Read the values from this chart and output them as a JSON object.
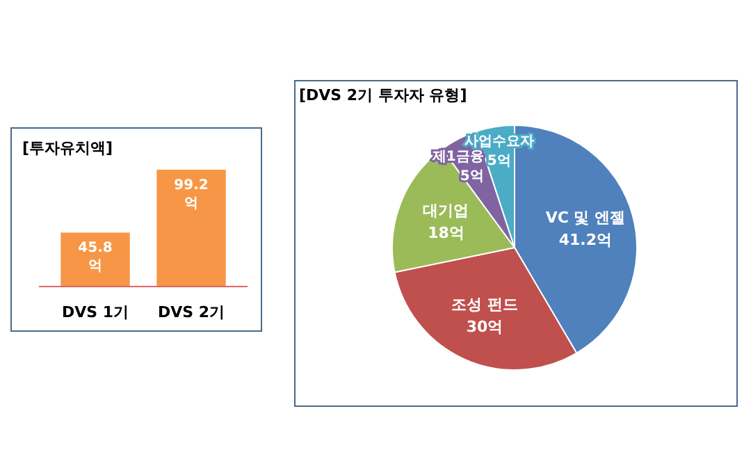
{
  "chart_data": [
    {
      "type": "bar",
      "title": "[투자유치액]",
      "categories": [
        "DVS 1기",
        "DVS 2기"
      ],
      "values": [
        45.8,
        99.2
      ],
      "color": "#f79646",
      "value_labels": [
        "45.8\n억",
        "99.2\n억"
      ]
    },
    {
      "type": "pie",
      "title": "[DVS 2기 투자자 유형]",
      "categories": [
        "VC 및 엔젤",
        "조성 펀드",
        "대기업",
        "제1금융",
        "사업수요자"
      ],
      "values": [
        41.2,
        30,
        18,
        5,
        5
      ],
      "value_labels": [
        "41.2억",
        "30억",
        "18억",
        "5억",
        "5억"
      ],
      "colors": [
        "#4f81bd",
        "#c0504d",
        "#9bbb59",
        "#8064a2",
        "#4bacc6"
      ]
    }
  ]
}
